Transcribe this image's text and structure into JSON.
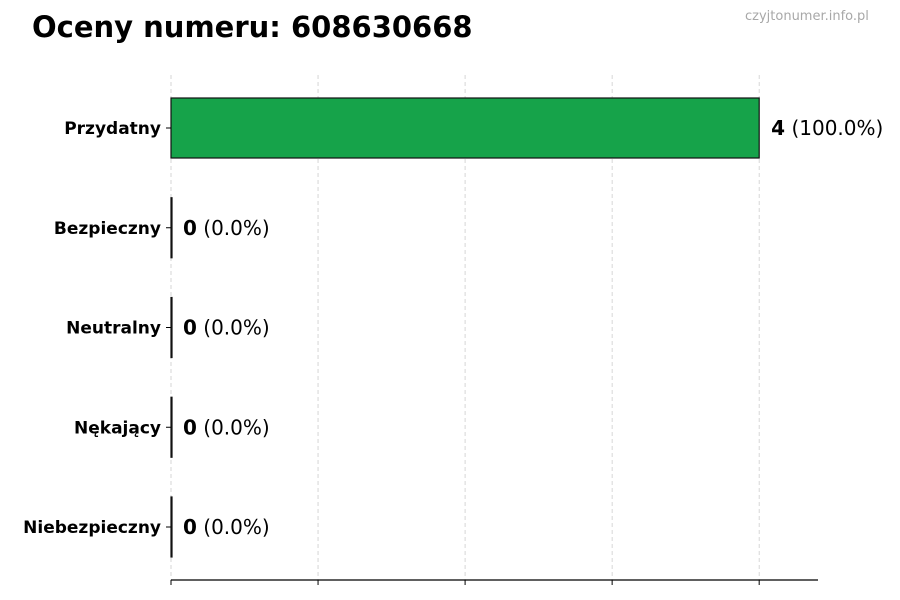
{
  "title": "Oceny numeru: 608630668",
  "watermark": "czyjtonumer.info.pl",
  "chart_data": {
    "type": "bar",
    "orientation": "horizontal",
    "title": "Oceny numeru: 608630668",
    "categories": [
      "Przydatny",
      "Bezpieczny",
      "Neutralny",
      "Nękający",
      "Niebezpieczny"
    ],
    "values": [
      4,
      0,
      0,
      0,
      0
    ],
    "data_labels": [
      {
        "count": "4",
        "pct": "(100.0%)"
      },
      {
        "count": "0",
        "pct": "(0.0%)"
      },
      {
        "count": "0",
        "pct": "(0.0%)"
      },
      {
        "count": "0",
        "pct": "(0.0%)"
      },
      {
        "count": "0",
        "pct": "(0.0%)"
      }
    ],
    "bar_color": "#16a34a",
    "xlim": [
      0,
      4.4
    ],
    "xticks": [
      0,
      1,
      2,
      3,
      4
    ],
    "xtick_labels_shown": false,
    "grid": "x dashed",
    "xlabel": "",
    "ylabel": ""
  }
}
